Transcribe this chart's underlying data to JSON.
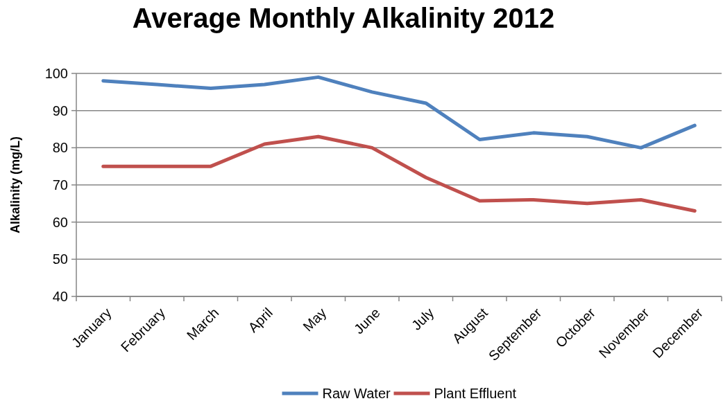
{
  "chart_data": {
    "type": "line",
    "title": "Average Monthly Alkalinity 2012",
    "ylabel": "Alkalinity (mg/L)",
    "categories": [
      "January",
      "February",
      "March",
      "April",
      "May",
      "June",
      "July",
      "August",
      "September",
      "October",
      "November",
      "December"
    ],
    "series": [
      {
        "name": "Raw Water",
        "color": "#4f81bd",
        "values": [
          98,
          97,
          96,
          97,
          99,
          95,
          92,
          82.2,
          84,
          83,
          80,
          86
        ]
      },
      {
        "name": "Plant Effluent",
        "color": "#c0504d",
        "values": [
          75,
          75,
          75,
          81,
          83,
          80,
          72,
          65.7,
          66,
          65,
          66,
          63
        ]
      }
    ],
    "ylim": [
      40,
      100
    ],
    "yticks": [
      40,
      50,
      60,
      70,
      80,
      90,
      100
    ],
    "grid": "y",
    "legend": "bottom",
    "marker": "none",
    "line_style": "solid"
  }
}
